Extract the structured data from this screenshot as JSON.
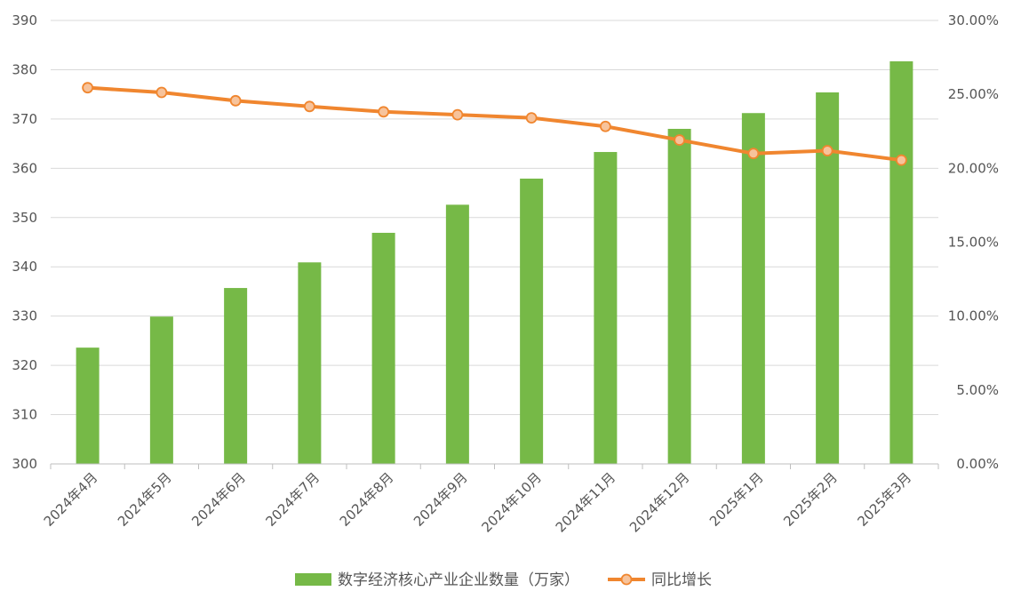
{
  "chart_data": {
    "type": "bar+line",
    "categories": [
      "2024年4月",
      "2024年5月",
      "2024年6月",
      "2024年7月",
      "2024年8月",
      "2024年9月",
      "2024年10月",
      "2024年11月",
      "2024年12月",
      "2025年1月",
      "2025年2月",
      "2025年3月"
    ],
    "series": [
      {
        "name": "数字经济核心产业企业数量（万家）",
        "type": "bar",
        "axis": "left",
        "color": "#76b947",
        "values": [
          323.6,
          329.9,
          335.7,
          340.9,
          346.9,
          352.6,
          357.9,
          363.3,
          368.0,
          371.2,
          375.4,
          381.7
        ]
      },
      {
        "name": "同比增长",
        "type": "line",
        "axis": "right",
        "color": "#f0862f",
        "marker_fill": "#f7c39b",
        "values": [
          0.2545,
          0.2513,
          0.2457,
          0.2418,
          0.2382,
          0.2362,
          0.2341,
          0.2283,
          0.2191,
          0.21,
          0.2119,
          0.2055
        ]
      }
    ],
    "y_left": {
      "min": 300,
      "max": 390,
      "step": 10,
      "tick_labels": [
        "300",
        "310",
        "320",
        "330",
        "340",
        "350",
        "360",
        "370",
        "380",
        "390"
      ]
    },
    "y_right": {
      "min": 0,
      "max": 0.3,
      "step": 0.05,
      "tick_labels": [
        "0.00%",
        "5.00%",
        "10.00%",
        "15.00%",
        "20.00%",
        "25.00%",
        "30.00%"
      ]
    },
    "grid": true,
    "legend_position": "bottom"
  }
}
